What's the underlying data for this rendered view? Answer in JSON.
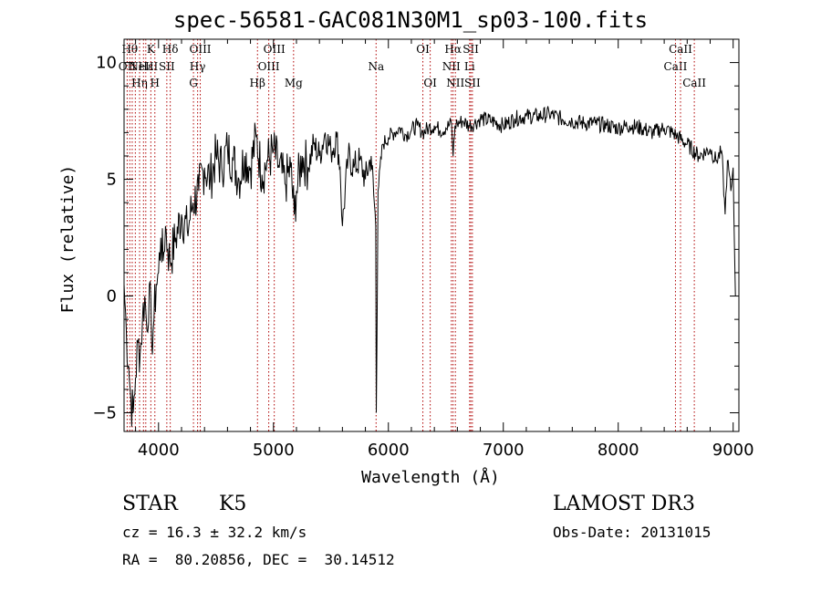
{
  "chart_data": {
    "type": "line",
    "title": "spec-56581-GAC081N30M1_sp03-100.fits",
    "xlabel": "Wavelength (Å)",
    "ylabel": "Flux (relative)",
    "xlim": [
      3700,
      9050
    ],
    "ylim": [
      -5.8,
      11.0
    ],
    "xticks": [
      4000,
      5000,
      6000,
      7000,
      8000,
      9000
    ],
    "yticks": [
      -5,
      0,
      5,
      10
    ],
    "yticklabels": [
      "−5",
      "0",
      "5",
      "10"
    ],
    "series": [
      {
        "name": "spectrum",
        "x": [
          3700,
          3720,
          3740,
          3760,
          3780,
          3800,
          3820,
          3840,
          3860,
          3880,
          3900,
          3920,
          3940,
          3960,
          3980,
          4000,
          4020,
          4040,
          4060,
          4080,
          4100,
          4150,
          4200,
          4250,
          4300,
          4350,
          4400,
          4450,
          4500,
          4550,
          4600,
          4650,
          4700,
          4750,
          4800,
          4850,
          4900,
          4950,
          5000,
          5050,
          5100,
          5150,
          5180,
          5200,
          5250,
          5300,
          5350,
          5400,
          5450,
          5500,
          5550,
          5580,
          5600,
          5650,
          5700,
          5750,
          5800,
          5850,
          5890,
          5895,
          5910,
          5950,
          6000,
          6050,
          6100,
          6150,
          6200,
          6250,
          6300,
          6350,
          6400,
          6450,
          6500,
          6550,
          6563,
          6580,
          6600,
          6650,
          6700,
          6750,
          6800,
          6900,
          7000,
          7100,
          7200,
          7300,
          7400,
          7500,
          7600,
          7700,
          7800,
          7900,
          8000,
          8100,
          8200,
          8300,
          8400,
          8500,
          8600,
          8700,
          8800,
          8850,
          8900,
          8930,
          8950,
          8980,
          9000,
          9020
        ],
        "y": [
          0.5,
          -1.5,
          -3.0,
          -4.5,
          -5.0,
          -3.5,
          -2.0,
          -2.5,
          -1.0,
          0.0,
          -1.5,
          0.5,
          -2.0,
          -1.0,
          0.5,
          1.0,
          2.5,
          1.5,
          3.0,
          2.0,
          1.5,
          2.5,
          3.5,
          2.8,
          4.0,
          4.5,
          5.5,
          5.0,
          6.0,
          5.5,
          6.3,
          5.8,
          5.0,
          6.0,
          5.5,
          6.8,
          5.2,
          5.8,
          6.2,
          5.5,
          4.8,
          5.5,
          3.5,
          4.5,
          6.0,
          5.5,
          6.5,
          6.0,
          7.0,
          6.2,
          6.8,
          5.5,
          3.0,
          6.0,
          5.5,
          5.8,
          5.0,
          6.0,
          3.0,
          -5.0,
          4.5,
          6.5,
          6.8,
          7.0,
          7.2,
          6.9,
          7.1,
          7.3,
          7.0,
          7.2,
          7.3,
          7.1,
          7.2,
          7.4,
          6.0,
          7.3,
          7.4,
          7.5,
          7.3,
          7.4,
          7.6,
          7.5,
          7.3,
          7.6,
          7.7,
          7.7,
          7.8,
          7.6,
          7.5,
          7.4,
          7.4,
          7.3,
          7.2,
          7.3,
          7.2,
          7.0,
          7.2,
          6.9,
          6.5,
          6.0,
          6.3,
          5.8,
          6.2,
          3.5,
          5.8,
          4.5,
          5.5,
          0.0
        ]
      }
    ],
    "line_markers": [
      {
        "wl": 3727,
        "label": "OII",
        "row": 1
      },
      {
        "wl": 3750,
        "label": "Hθ",
        "row": 0
      },
      {
        "wl": 3771,
        "label": "",
        "row": -1
      },
      {
        "wl": 3798,
        "label": "",
        "row": -1
      },
      {
        "wl": 3835,
        "label": "Hη",
        "row": 2
      },
      {
        "wl": 3869,
        "label": "NeIII",
        "row": 1
      },
      {
        "wl": 3889,
        "label": "Hε",
        "row": 1
      },
      {
        "wl": 3933,
        "label": "K",
        "row": 0
      },
      {
        "wl": 3968,
        "label": "H",
        "row": 2
      },
      {
        "wl": 4072,
        "label": "SII",
        "row": 1
      },
      {
        "wl": 4102,
        "label": "Hδ",
        "row": 0
      },
      {
        "wl": 4304,
        "label": "G",
        "row": 2
      },
      {
        "wl": 4340,
        "label": "Hγ",
        "row": 1
      },
      {
        "wl": 4363,
        "label": "OIII",
        "row": 0
      },
      {
        "wl": 4861,
        "label": "Hβ",
        "row": 2
      },
      {
        "wl": 4959,
        "label": "OIII",
        "row": 1
      },
      {
        "wl": 5007,
        "label": "OIII",
        "row": 0
      },
      {
        "wl": 5175,
        "label": "Mg",
        "row": 2
      },
      {
        "wl": 5893,
        "label": "Na",
        "row": 1
      },
      {
        "wl": 6300,
        "label": "OI",
        "row": 0
      },
      {
        "wl": 6364,
        "label": "OI",
        "row": 2
      },
      {
        "wl": 6548,
        "label": "NII",
        "row": 1
      },
      {
        "wl": 6563,
        "label": "Hα",
        "row": 0
      },
      {
        "wl": 6583,
        "label": "NII",
        "row": 2
      },
      {
        "wl": 6707,
        "label": "Li",
        "row": 1
      },
      {
        "wl": 6717,
        "label": "SII",
        "row": 0
      },
      {
        "wl": 6731,
        "label": "SII",
        "row": 2
      },
      {
        "wl": 8498,
        "label": "CaII",
        "row": 1
      },
      {
        "wl": 8542,
        "label": "CaII",
        "row": 0
      },
      {
        "wl": 8662,
        "label": "CaII",
        "row": 2
      }
    ],
    "marker_color": "#b00000"
  },
  "info": {
    "class": "STAR",
    "subclass": "K5",
    "survey": "LAMOST DR3",
    "cz": "cz = 16.3 ± 32.2 km/s",
    "obs_date": "Obs-Date: 20131015",
    "radec": "RA =  80.20856, DEC =  30.14512"
  }
}
